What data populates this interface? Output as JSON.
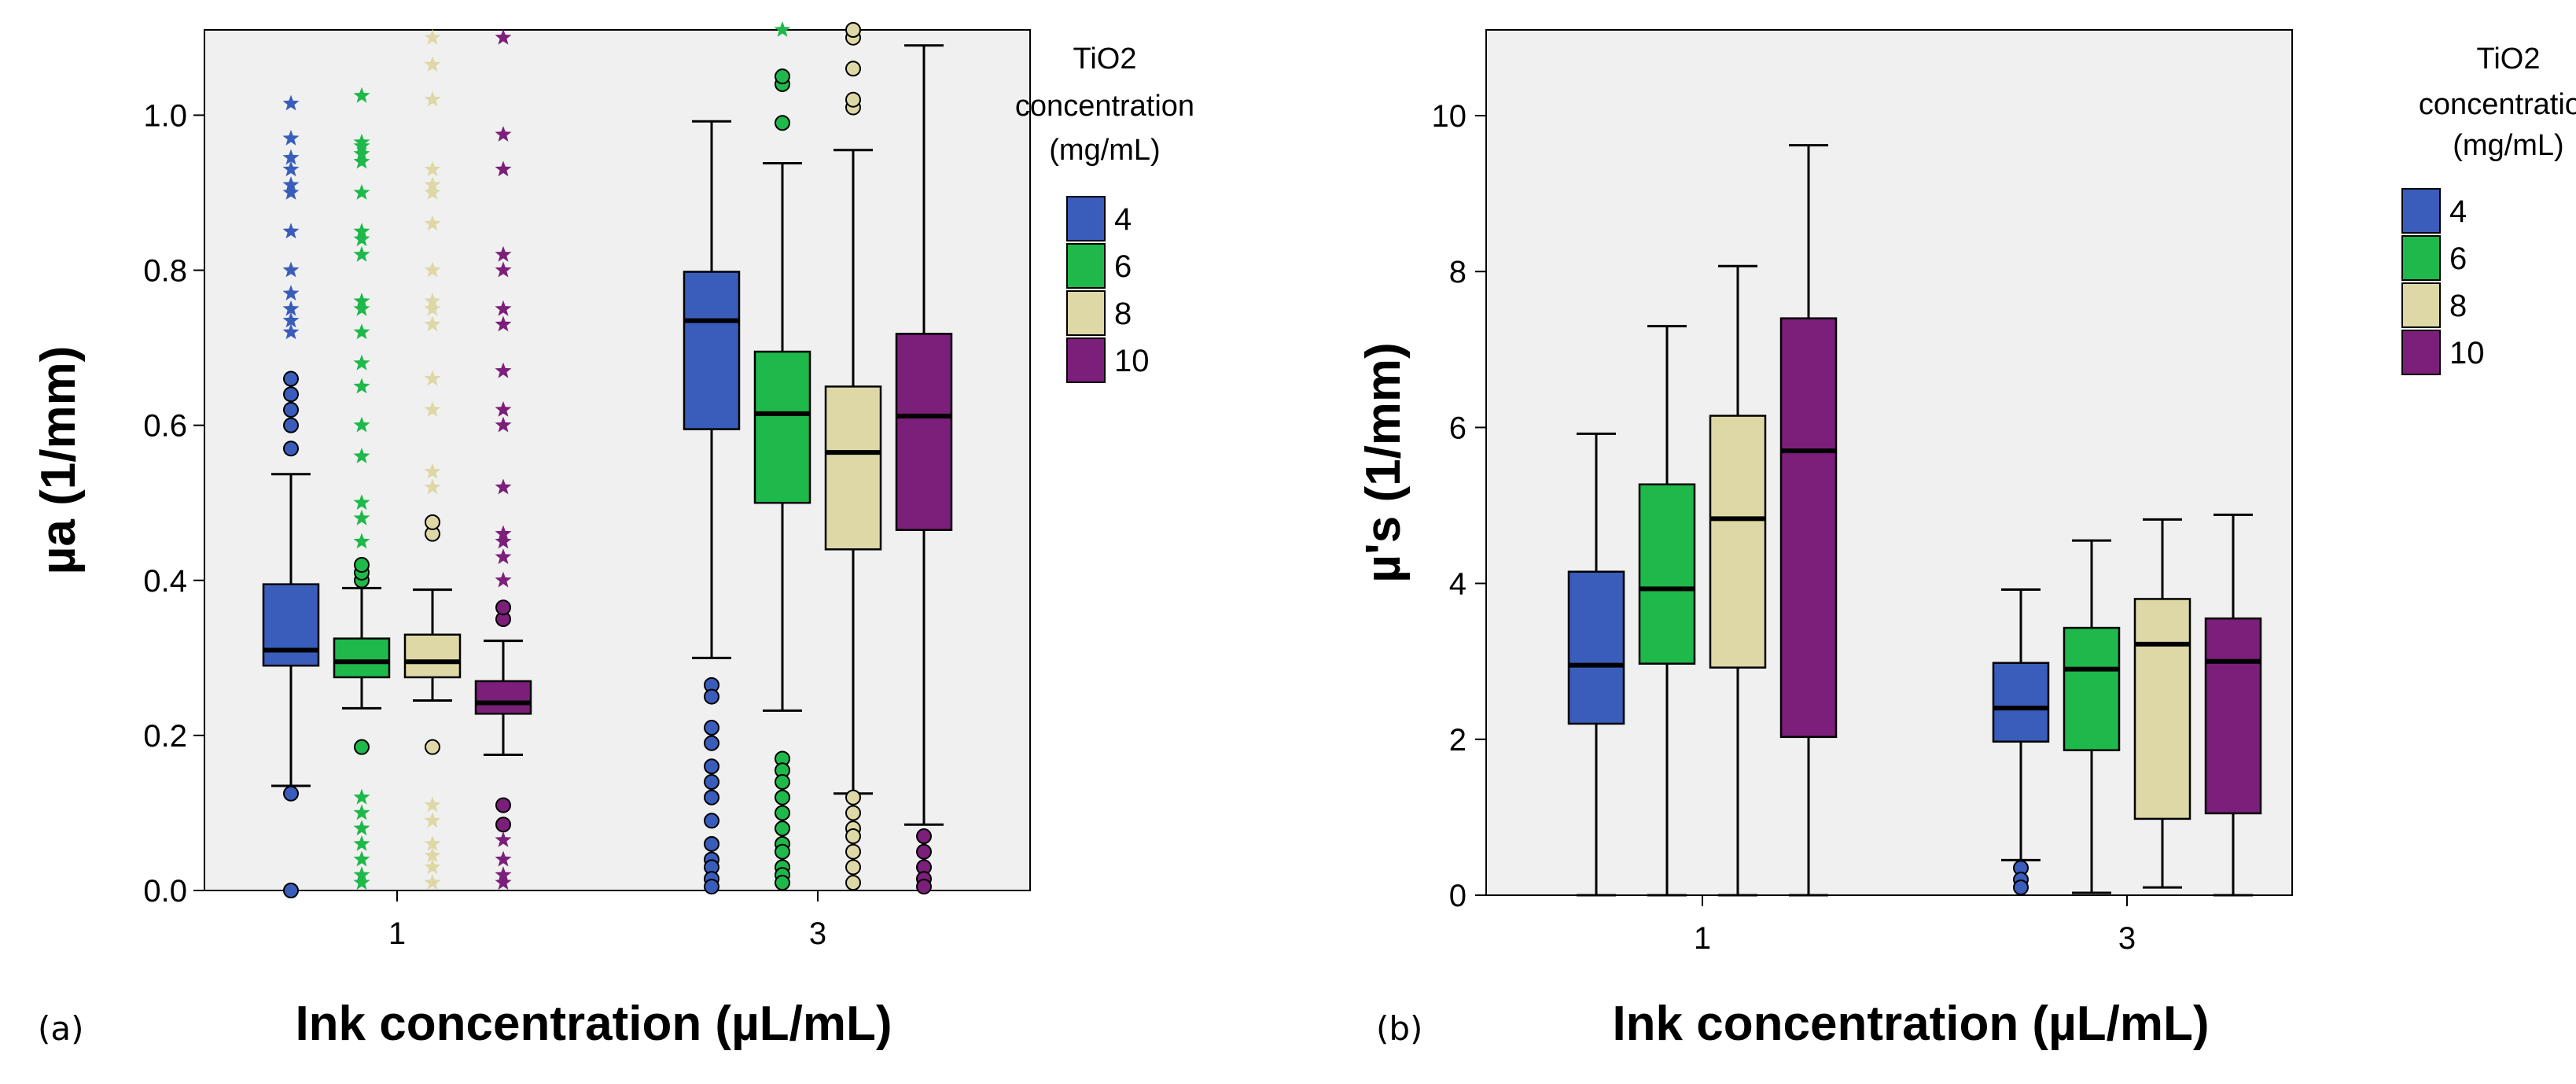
{
  "chart_data": [
    {
      "type": "box",
      "panel_label": "(a)",
      "xlabel": "Ink concentration (µL/mL)",
      "ylabel": "µa (1/mm)",
      "categories": [
        "1",
        "3"
      ],
      "ylim": [
        0,
        1.11
      ],
      "yticks": [
        "0.0",
        "0.2",
        "0.4",
        "0.6",
        "0.8",
        "1.0"
      ],
      "ytick_values": [
        0,
        0.2,
        0.4,
        0.6,
        0.8,
        1.0
      ],
      "legend": {
        "title": [
          "TiO2",
          "concentration",
          "(mg/mL)"
        ],
        "entries": [
          "4",
          "6",
          "8",
          "10"
        ],
        "placement": "right"
      },
      "series": [
        {
          "name": "4",
          "color": "#3a5dbb",
          "boxes": [
            {
              "category": "1",
              "whisker_low": 0.135,
              "q1": 0.29,
              "median": 0.31,
              "q3": 0.395,
              "whisker_high": 0.537,
              "outliers": [
                0.57,
                0.6,
                0.62,
                0.64,
                0.66,
                0.125,
                0.0
              ],
              "extremes": [
                0.72,
                0.735,
                0.75,
                0.77,
                0.8,
                0.85,
                0.9,
                0.91,
                0.93,
                0.945,
                0.97,
                1.015
              ]
            },
            {
              "category": "3",
              "whisker_low": 0.3,
              "q1": 0.595,
              "median": 0.735,
              "q3": 0.798,
              "whisker_high": 0.992,
              "outliers": [
                0.265,
                0.25,
                0.21,
                0.19,
                0.16,
                0.14,
                0.12,
                0.09,
                0.06,
                0.04,
                0.03,
                0.015,
                0.005
              ],
              "extremes": []
            }
          ]
        },
        {
          "name": "6",
          "color": "#1fb84a",
          "boxes": [
            {
              "category": "1",
              "whisker_low": 0.235,
              "q1": 0.275,
              "median": 0.295,
              "q3": 0.325,
              "whisker_high": 0.39,
              "outliers": [
                0.4,
                0.41,
                0.42,
                0.185
              ],
              "extremes": [
                0.45,
                0.48,
                0.5,
                0.56,
                0.6,
                0.65,
                0.68,
                0.72,
                0.75,
                0.76,
                0.82,
                0.84,
                0.85,
                0.9,
                0.94,
                0.95,
                0.96,
                0.965,
                1.025,
                0.12,
                0.1,
                0.08,
                0.06,
                0.04,
                0.02,
                0.01
              ]
            },
            {
              "category": "3",
              "whisker_low": 0.232,
              "q1": 0.5,
              "median": 0.615,
              "q3": 0.695,
              "whisker_high": 0.938,
              "outliers": [
                0.99,
                1.04,
                1.05,
                0.17,
                0.155,
                0.14,
                0.12,
                0.1,
                0.08,
                0.06,
                0.05,
                0.03,
                0.02,
                0.01
              ],
              "extremes": [
                1.11
              ]
            }
          ]
        },
        {
          "name": "8",
          "color": "#ddd8a6",
          "boxes": [
            {
              "category": "1",
              "whisker_low": 0.245,
              "q1": 0.275,
              "median": 0.295,
              "q3": 0.33,
              "whisker_high": 0.388,
              "outliers": [
                0.46,
                0.475,
                0.185
              ],
              "extremes": [
                0.52,
                0.54,
                0.62,
                0.66,
                0.73,
                0.75,
                0.76,
                0.8,
                0.86,
                0.9,
                0.91,
                0.93,
                1.02,
                1.065,
                1.1,
                0.11,
                0.09,
                0.06,
                0.045,
                0.03,
                0.01
              ]
            },
            {
              "category": "3",
              "whisker_low": 0.125,
              "q1": 0.44,
              "median": 0.565,
              "q3": 0.65,
              "whisker_high": 0.955,
              "outliers": [
                1.01,
                1.02,
                1.06,
                1.1,
                1.11,
                0.12,
                0.1,
                0.08,
                0.07,
                0.05,
                0.03,
                0.01
              ],
              "extremes": []
            }
          ]
        },
        {
          "name": "10",
          "color": "#7b1f7a",
          "boxes": [
            {
              "category": "1",
              "whisker_low": 0.175,
              "q1": 0.228,
              "median": 0.242,
              "q3": 0.27,
              "whisker_high": 0.322,
              "outliers": [
                0.35,
                0.365,
                0.11,
                0.085
              ],
              "extremes": [
                0.4,
                0.43,
                0.45,
                0.46,
                0.52,
                0.6,
                0.62,
                0.67,
                0.73,
                0.75,
                0.8,
                0.82,
                0.93,
                0.975,
                1.1,
                0.065,
                0.04,
                0.02,
                0.01
              ]
            },
            {
              "category": "3",
              "whisker_low": 0.085,
              "q1": 0.465,
              "median": 0.612,
              "q3": 0.718,
              "whisker_high": 1.09,
              "outliers": [
                0.07,
                0.05,
                0.03,
                0.015,
                0.005
              ],
              "extremes": []
            }
          ]
        }
      ]
    },
    {
      "type": "box",
      "panel_label": "(b)",
      "xlabel": "Ink concentration (µL/mL)",
      "ylabel": "µ's (1/mm)",
      "categories": [
        "1",
        "3"
      ],
      "ylim": [
        0,
        11.1
      ],
      "yticks": [
        "0",
        "2",
        "4",
        "6",
        "8",
        "10"
      ],
      "ytick_values": [
        0,
        2,
        4,
        6,
        8,
        10
      ],
      "legend": {
        "title": [
          "TiO2",
          "concentration",
          "(mg/mL)"
        ],
        "entries": [
          "4",
          "6",
          "8",
          "10"
        ],
        "placement": "right"
      },
      "series": [
        {
          "name": "4",
          "color": "#3a5dbb",
          "boxes": [
            {
              "category": "1",
              "whisker_low": 0.0,
              "q1": 2.2,
              "median": 2.95,
              "q3": 4.15,
              "whisker_high": 5.92,
              "outliers": [],
              "extremes": []
            },
            {
              "category": "3",
              "whisker_low": 0.45,
              "q1": 1.97,
              "median": 2.4,
              "q3": 2.98,
              "whisker_high": 3.92,
              "outliers": [
                0.35,
                0.2,
                0.1
              ],
              "extremes": []
            }
          ]
        },
        {
          "name": "6",
          "color": "#1fb84a",
          "boxes": [
            {
              "category": "1",
              "whisker_low": 0.0,
              "q1": 2.97,
              "median": 3.93,
              "q3": 5.27,
              "whisker_high": 7.3,
              "outliers": [],
              "extremes": []
            },
            {
              "category": "3",
              "whisker_low": 0.03,
              "q1": 1.86,
              "median": 2.9,
              "q3": 3.43,
              "whisker_high": 4.55,
              "outliers": [],
              "extremes": []
            }
          ]
        },
        {
          "name": "8",
          "color": "#ddd8a6",
          "boxes": [
            {
              "category": "1",
              "whisker_low": 0.0,
              "q1": 2.92,
              "median": 4.83,
              "q3": 6.15,
              "whisker_high": 8.07,
              "outliers": [],
              "extremes": []
            },
            {
              "category": "3",
              "whisker_low": 0.1,
              "q1": 0.98,
              "median": 3.22,
              "q3": 3.8,
              "whisker_high": 4.82,
              "outliers": [],
              "extremes": []
            }
          ]
        },
        {
          "name": "10",
          "color": "#7b1f7a",
          "boxes": [
            {
              "category": "1",
              "whisker_low": 0.0,
              "q1": 2.03,
              "median": 5.7,
              "q3": 7.4,
              "whisker_high": 9.62,
              "outliers": [],
              "extremes": []
            },
            {
              "category": "3",
              "whisker_low": 0.0,
              "q1": 1.05,
              "median": 3.0,
              "q3": 3.55,
              "whisker_high": 4.88,
              "outliers": [],
              "extremes": []
            }
          ]
        }
      ]
    }
  ]
}
